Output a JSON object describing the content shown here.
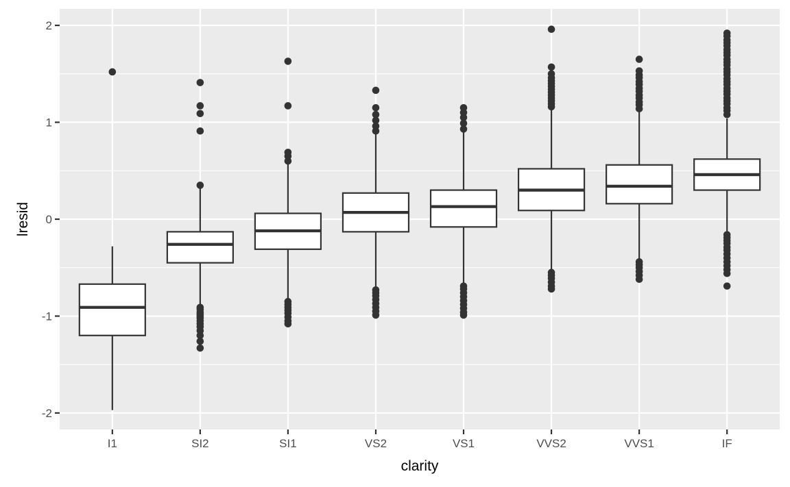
{
  "chart_data": {
    "type": "boxplot",
    "title": "",
    "xlabel": "clarity",
    "ylabel": "lresid",
    "categories": [
      "I1",
      "SI2",
      "SI1",
      "VS2",
      "VS1",
      "VVS2",
      "VVS1",
      "IF"
    ],
    "y_ticks": [
      -2,
      -1,
      0,
      1,
      2
    ],
    "y_tick_labels": [
      "-2",
      "-1",
      "0",
      "1",
      "2"
    ],
    "y_minor_ticks": [
      -1.5,
      -0.5,
      0.5,
      1.5
    ],
    "ylim": [
      -2.17,
      2.17
    ],
    "grid": "major-horizontal+minor-horizontal+major-vertical",
    "legend": "none",
    "series": [
      {
        "category": "I1",
        "whisker_low": -1.97,
        "q1": -1.2,
        "median": -0.91,
        "q3": -0.67,
        "whisker_high": -0.28,
        "outliers_high": [
          1.52
        ],
        "outliers_low": []
      },
      {
        "category": "SI2",
        "whisker_low": -0.88,
        "q1": -0.45,
        "median": -0.26,
        "q3": -0.13,
        "whisker_high": 0.32,
        "outliers_high": [
          1.41,
          1.17,
          1.09,
          0.91,
          0.35
        ],
        "outliers_low": [
          -0.91,
          -0.93,
          -0.96,
          -0.98,
          -1.0,
          -1.02,
          -1.05,
          -1.08,
          -1.11,
          -1.15,
          -1.2,
          -1.26,
          -1.33
        ]
      },
      {
        "category": "SI1",
        "whisker_low": -0.83,
        "q1": -0.31,
        "median": -0.12,
        "q3": 0.06,
        "whisker_high": 0.58,
        "outliers_high": [
          1.63,
          1.17,
          0.69,
          0.65,
          0.6
        ],
        "outliers_low": [
          -0.85,
          -0.88,
          -0.91,
          -0.94,
          -0.97,
          -1.01,
          -1.05,
          -1.08
        ]
      },
      {
        "category": "VS2",
        "whisker_low": -0.71,
        "q1": -0.13,
        "median": 0.07,
        "q3": 0.27,
        "whisker_high": 0.88,
        "outliers_high": [
          1.33,
          1.15,
          1.08,
          1.02,
          0.96,
          0.91
        ],
        "outliers_low": [
          -0.73,
          -0.76,
          -0.79,
          -0.83,
          -0.87,
          -0.91,
          -0.95,
          -0.99
        ]
      },
      {
        "category": "VS1",
        "whisker_low": -0.67,
        "q1": -0.08,
        "median": 0.13,
        "q3": 0.3,
        "whisker_high": 0.9,
        "outliers_high": [
          1.15,
          1.1,
          1.05,
          0.99,
          0.93
        ],
        "outliers_low": [
          -0.69,
          -0.72,
          -0.76,
          -0.8,
          -0.84,
          -0.88,
          -0.92,
          -0.96,
          -0.99
        ]
      },
      {
        "category": "VVS2",
        "whisker_low": -0.53,
        "q1": 0.09,
        "median": 0.3,
        "q3": 0.52,
        "whisker_high": 1.13,
        "outliers_high": [
          1.96,
          1.57,
          1.5,
          1.46,
          1.43,
          1.4,
          1.37,
          1.34,
          1.31,
          1.28,
          1.25,
          1.22,
          1.19,
          1.16
        ],
        "outliers_low": [
          -0.55,
          -0.58,
          -0.61,
          -0.65,
          -0.69,
          -0.72
        ]
      },
      {
        "category": "VVS1",
        "whisker_low": -0.42,
        "q1": 0.16,
        "median": 0.34,
        "q3": 0.56,
        "whisker_high": 1.12,
        "outliers_high": [
          1.65,
          1.53,
          1.49,
          1.46,
          1.42,
          1.39,
          1.35,
          1.32,
          1.28,
          1.25,
          1.21,
          1.18,
          1.14
        ],
        "outliers_low": [
          -0.44,
          -0.47,
          -0.5,
          -0.54,
          -0.58,
          -0.62
        ]
      },
      {
        "category": "IF",
        "whisker_low": -0.14,
        "q1": 0.3,
        "median": 0.46,
        "q3": 0.62,
        "whisker_high": 1.04,
        "outliers_high": [
          1.92,
          1.89,
          1.85,
          1.82,
          1.79,
          1.75,
          1.72,
          1.69,
          1.65,
          1.62,
          1.59,
          1.55,
          1.52,
          1.49,
          1.45,
          1.42,
          1.39,
          1.35,
          1.32,
          1.29,
          1.25,
          1.22,
          1.19,
          1.15,
          1.12,
          1.08
        ],
        "outliers_low": [
          -0.16,
          -0.19,
          -0.22,
          -0.25,
          -0.29,
          -0.32,
          -0.36,
          -0.4,
          -0.44,
          -0.48,
          -0.52,
          -0.56,
          -0.69
        ]
      }
    ],
    "style": {
      "panel_bg": "#EBEBEB",
      "grid_color": "#FFFFFF",
      "box_stroke": "#333333",
      "box_fill": "#FFFFFF",
      "outlier_color": "#333333",
      "tick_mark_color": "#333333",
      "tick_label_color": "#4D4D4D",
      "axis_title_color": "#000000"
    }
  }
}
